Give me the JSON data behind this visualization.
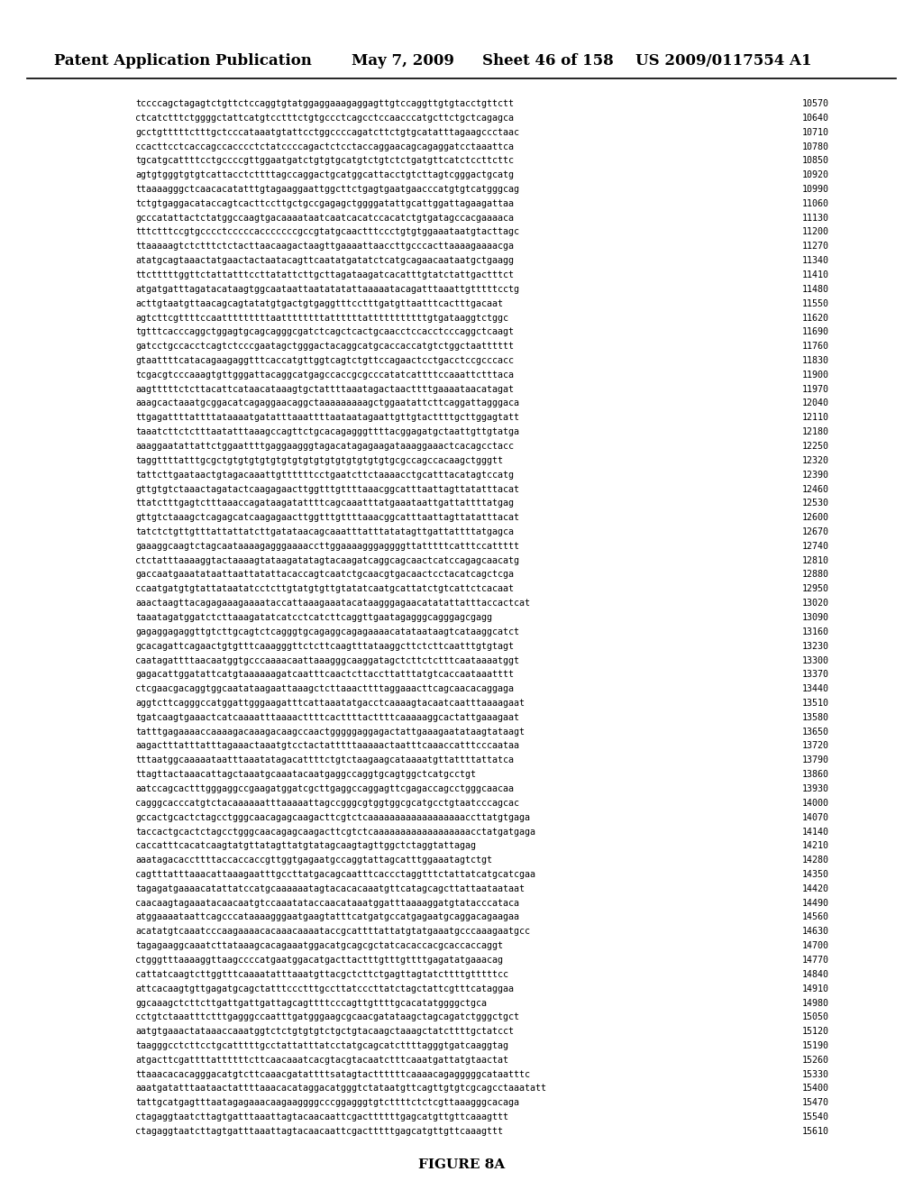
{
  "header_left": "Patent Application Publication",
  "header_center": "May 7, 2009",
  "header_right_sheet": "Sheet 46 of 158",
  "header_right_patent": "US 2009/0117554 A1",
  "figure_label": "FIGURE 8A",
  "sequences": [
    [
      "tccccagctagagtctgttctccaggtgtatggaggaaagaggagttgtccaggttgtgtacctgttctt",
      "10570"
    ],
    [
      "ctcatctttctggggctattcatgtcctttctgtgccctcagcctccaacccatgcttctgctcagagca",
      "10640"
    ],
    [
      "gcctgtttttctttgctcccataaatgtattcctggccccagatcttctgtgcatatttagaagccctaac",
      "10710"
    ],
    [
      "ccacttcctcaccagccacccctctatccccagactctcctaccaggaacagcagaggatcctaaattca",
      "10780"
    ],
    [
      "tgcatgcattttcctgccccgttggaatgatctgtgtgcatgtctgtctctgatgttcatctccttcttc",
      "10850"
    ],
    [
      "agtgtgggtgtgtcattacctcttttagccaggactgcatggcattacctgtcttagtcgggactgcatg",
      "10920"
    ],
    [
      "ttaaaagggctcaacacatatttgtagaaggaattggcttctgagtgaatgaacccatgtgtcatgggcag",
      "10990"
    ],
    [
      "tctgtgaggacataccagtcacttccttgctgccgagagctggggatattgcattggattagaagattaa",
      "11060"
    ],
    [
      "gcccatattactctatggccaagtgacaaaataatcaatcacatccacatctgtgatagccacgaaaaca",
      "11130"
    ],
    [
      "tttctttccgtgcccctcccccacccccccgccgtatgcaactttccctgtgtggaaataatgtacttagc",
      "11200"
    ],
    [
      "ttaaaaagtctctttctctacttaacaagactaagttgaaaattaaccttgcccacttaaaagaaaacga",
      "11270"
    ],
    [
      "atatgcagtaaactatgaactactaatacagttcaatatgatatctcatgcagaacaataatgctgaagg",
      "11340"
    ],
    [
      "ttctttttggttctattatttccttatattcttgcttagataagatcacatttgtatctattgactttct",
      "11410"
    ],
    [
      "atgatgatttagatacataagtggcaataattaatatatattaaaaatacagatttaaattgtttttcctg",
      "11480"
    ],
    [
      "acttgtaatgttaacagcagtatatgtgactgtgaggtttcctttgatgttaatttcactttgacaat",
      "11550"
    ],
    [
      "agtcttcgttttccaatttttttttaattttttttattttttatttttttttttgtgataaggtctggc",
      "11620"
    ],
    [
      "tgtttcacccaggctggagtgcagcagggcgatctcagctcactgcaacctccacctcccaggctcaagt",
      "11690"
    ],
    [
      "gatcctgccacctcagtctcccgaatagctgggactacaggcatgcaccaccatgtctggctaatttttt",
      "11760"
    ],
    [
      "gtaattttcatacagaagaggtttcaccatgttggtcagtctgttccagaactcctgacctccgcccacc",
      "11830"
    ],
    [
      "tcgacgtcccaaagtgttgggattacaggcatgagccaccgcgcccatatcattttccaaattctttaca",
      "11900"
    ],
    [
      "aagtttttctcttacattcataacataaagtgctattttaaatagactaacttttgaaaataacatagat",
      "11970"
    ],
    [
      "aaagcactaaatgcggacatcagaggaacaggctaaaaaaaaagctggaatattcttcaggattagggaca",
      "12040"
    ],
    [
      "ttgagattttattttataaaatgatatttaaattttaataatagaattgttgtacttttgcttggagtatt",
      "12110"
    ],
    [
      "taaatcttctctttaatatttaaagccagttctgcacagagggttttacggagatgctaattgttgtatga",
      "12180"
    ],
    [
      "aaaggaatattattctggaattttgaggaagggtagacatagagaagataaaggaaactcacagcctacc",
      "12250"
    ],
    [
      "taggttttatttgcgctgtgtgtgtgtgtgtgtgtgtgtgtgtgtgtgcgccagccacaagctgggtt",
      "12320"
    ],
    [
      "tattcttgaataactgtagacaaattgttttttcctgaatcttctaaaacctgcatttacatagtccatg",
      "12390"
    ],
    [
      "gttgtgtctaaactagatactcaagagaacttggtttgttttaaacggcatttaattagttatatttacat",
      "12460"
    ],
    [
      "ttatctttgagtctttaaaccagataagatattttcagcaaatttatgaaataattgattattttatgag",
      "12530"
    ],
    [
      "gttgtctaaagctcagagcatcaagagaacttggtttgttttaaacggcatttaattagttatatttacat",
      "12600"
    ],
    [
      "tatctctgttgtttattattatcttgatataacagcaaatttatttatatagttgattattttatgagca",
      "12670"
    ],
    [
      "gaaaggcaagtctagcaataaaagagggaaaaccttggaaaagggaggggttatttttcatttccattttt",
      "12740"
    ],
    [
      "ctctatttaaaaggtactaaaagtataagatatagtacaagatcaggcagcaactcatccagagcaacatg",
      "12810"
    ],
    [
      "gaccaatgaaatataattaattatattacaccagtcaatctgcaacgtgacaactcctacatcagctcga",
      "12880"
    ],
    [
      "ccaatgatgtgtattataatatcctcttgtatgtgttgtatatcaatgcattatctgtcattctcacaat",
      "12950"
    ],
    [
      "aaactaagttacagagaaagaaaataccattaaagaaatacataagggagaacatatattatttaccactcat",
      "13020"
    ],
    [
      "taaatagatggatctcttaaagatatcatcctcatcttcaggttgaatagagggcagggagcgagg",
      "13090"
    ],
    [
      "gagaggagaggttgtcttgcagtctcagggtgcagaggcagagaaaacatataataagtcataaggcatct",
      "13160"
    ],
    [
      "gcacagattcagaactgtgtttcaaagggttctcttcaagtttataaggcttctcttcaatttgtgtagt",
      "13230"
    ],
    [
      "caatagattttaacaatggtgcccaaaacaattaaagggcaaggatagctcttctctttcaataaaatggt",
      "13300"
    ],
    [
      "gagacattggatattcatgtaaaaaagatcaatttcaactcttaccttatttatgtcaccaataaatttt",
      "13370"
    ],
    [
      "ctcgaacgacaggtggcaatataagaattaaagctcttaaacttttaggaaacttcagcaacacaggaga",
      "13440"
    ],
    [
      "aggtcttcagggccatggattgggaagatttcattaaatatgacctcaaaagtacaatcaatttaaaagaat",
      "13510"
    ],
    [
      "tgatcaagtgaaactcatcaaaatttaaaacttttcacttttacttttcaaaaaggcactattgaaagaat",
      "13580"
    ],
    [
      "tatttgagaaaaccaaaagacaaagacaagccaactgggggaggagactattgaaagaatataagtataagt",
      "13650"
    ],
    [
      "aagactttatttatttagaaactaaatgtcctactatttttaaaaactaatttcaaaccatttcccaataa",
      "13720"
    ],
    [
      "tttaatggcaaaaataatttaaatatagacattttctgtctaagaagcataaaatgttattttattatca",
      "13790"
    ],
    [
      "ttagttactaaacattagctaaatgcaaatacaatgaggccaggtgcagtggctcatgcctgt",
      "13860"
    ],
    [
      "aatccagcactttgggaggccgaagatggatcgcttgaggccaggagttcgagaccagcctgggcaacaa",
      "13930"
    ],
    [
      "cagggcacccatgtctacaaaaaatttaaaaattagccgggcgtggtggcgcatgcctgtaatcccagcac",
      "14000"
    ],
    [
      "gccactgcactctagcctgggcaacagagcaagacttcgtctcaaaaaaaaaaaaaaaaaaccttatgtgaga",
      "14070"
    ],
    [
      "taccactgcactctagcctgggcaacagagcaagacttcgtctcaaaaaaaaaaaaaaaaaacctatgatgaga",
      "14140"
    ],
    [
      "caccatttcacatcaagtatgttatagttatgtatagcaagtagttggctctaggtattagag",
      "14210"
    ],
    [
      "aaatagacaccttttaccaccaccgttggtgagaatgccaggtattagcatttggaaatagtctgt",
      "14280"
    ],
    [
      "cagtttatttaaacattaaagaatttgccttatgacagcaatttcaccctaggtttctattatcatgcatcgaa",
      "14350"
    ],
    [
      "tagagatgaaaacatattatccatgcaaaaaatagtacacacaaatgttcatagcagcttattaataataat",
      "14420"
    ],
    [
      "caacaagtagaaatacaacaatgtccaaatataccaacataaatggatttaaaaggatgtatacccataca",
      "14490"
    ],
    [
      "atggaaaataattcagcccataaaagggaatgaagtatttcatgatgccatgagaatgcaggacagaagaa",
      "14560"
    ],
    [
      "acatatgtcaaatcccaagaaaacacaaacaaaataccgcattttattatgtatgaaatgcccaaagaatgcc",
      "14630"
    ],
    [
      "tagagaaggcaaatcttataaagcacagaaatggacatgcagcgctatcacaccacgcaccaccaggt",
      "14700"
    ],
    [
      "ctgggtttaaaaggttaagccccatgaatggacatgacttactttgtttgttttgagatatgaaacag",
      "14770"
    ],
    [
      "cattatcaagtcttggtttcaaaatatttaaatgttacgctcttctgagttagtatcttttgtttttcc",
      "14840"
    ],
    [
      "attcacaagtgttgagatgcagctatttccctttgccttatcccttatctagctattcgtttcataggaa",
      "14910"
    ],
    [
      "ggcaaagctcttcttgattgattgattagcagttttcccagttgttttgcacatatggggctgca",
      "14980"
    ],
    [
      "cctgtctaaatttctttgagggccaatttgatgggaagcgcaacgatataagctagcagatctgggctgct",
      "15050"
    ],
    [
      "aatgtgaaactataaaccaaatggtctctgtgtgtctgctgtacaagctaaagctatcttttgctatcct",
      "15120"
    ],
    [
      "taagggcctcttcctgcatttttgcctattatttatcctatgcagcatcttttagggtgatcaaggtag",
      "15190"
    ],
    [
      "atgacttcgattttattttttcttcaacaaatcacgtacgtacaatctttcaaatgattatgtaactat",
      "15260"
    ],
    [
      "ttaaacacacagggacatgtcttcaaacgatattttsatagtacttttttcaaaacagagggggcataatttc",
      "15330"
    ],
    [
      "aaatgatatttaataactattttaaacacataggacatgggtctataatgttcagttgtgtcgcagcctaaatatt",
      "15400"
    ],
    [
      "tattgcatgagtttaatagagaaacaagaaggggcccggagggtgtcttttctctcgttaaagggcacaga",
      "15470"
    ],
    [
      "ctagaggtaatcttagtgatttaaattagtacaacaattcgacttttttgagcatgttgttcaaagttt",
      "15540"
    ],
    [
      "ctagaggtaatcttagtgatttaaattagtacaacaattcgactttttgagcatgttgttcaaagttt",
      "15610"
    ]
  ],
  "bg_color": "#ffffff",
  "text_color": "#000000",
  "header_font_size": 12,
  "seq_font_size": 7.2,
  "num_font_size": 7.2
}
